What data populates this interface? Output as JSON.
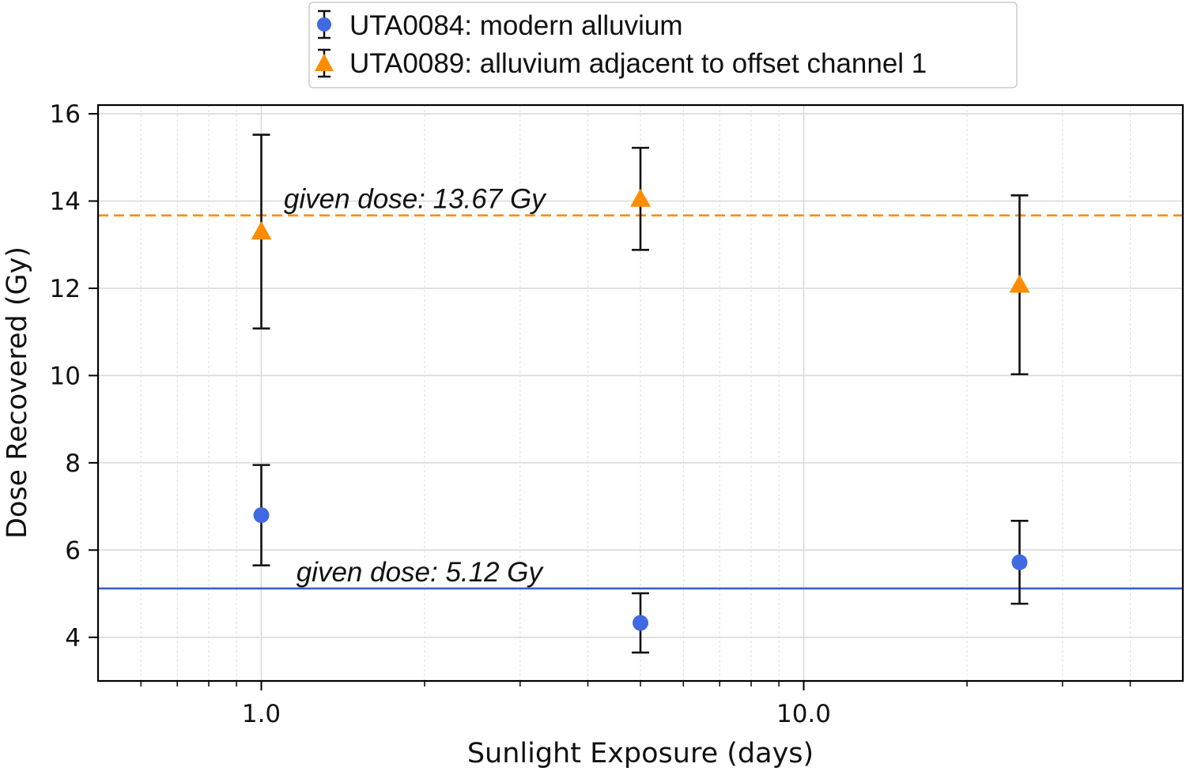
{
  "chart_data": {
    "type": "scatter",
    "xscale": "log",
    "xlim": [
      0.5,
      50
    ],
    "ylim": [
      3,
      16.2
    ],
    "grid": true,
    "legend_position": "top-center",
    "xlabel": "Sunlight Exposure (days)",
    "ylabel": "Dose Recovered (Gy)",
    "x_ticks": [
      {
        "value": 1,
        "label": "1.0"
      },
      {
        "value": 10,
        "label": "10.0"
      }
    ],
    "y_ticks": [
      4,
      6,
      8,
      10,
      12,
      14,
      16
    ],
    "series": [
      {
        "name": "UTA0084: modern alluvium",
        "color": "#4169e1",
        "marker": "circle",
        "x": [
          1,
          5,
          25
        ],
        "y": [
          6.8,
          4.33,
          5.72
        ],
        "err_low": [
          1.15,
          0.68,
          0.95
        ],
        "err_high": [
          1.15,
          0.68,
          0.95
        ]
      },
      {
        "name": "UTA0089: alluvium adjacent to offset channel 1",
        "color": "#ff8c00",
        "marker": "triangle",
        "x": [
          1,
          5,
          25
        ],
        "y": [
          13.3,
          14.05,
          12.08
        ],
        "err_low": [
          2.22,
          1.17,
          2.05
        ],
        "err_high": [
          2.22,
          1.17,
          2.05
        ]
      }
    ],
    "reference_lines": [
      {
        "y": 13.67,
        "label": "given dose: 13.67 Gy",
        "color": "#ff8c00",
        "style": "dashed",
        "label_x": 1.1,
        "label_y": 14.05
      },
      {
        "y": 5.12,
        "label": "given dose: 5.12 Gy",
        "color": "#3a5fcd",
        "style": "solid",
        "label_x": 1.16,
        "label_y": 5.5
      }
    ]
  }
}
